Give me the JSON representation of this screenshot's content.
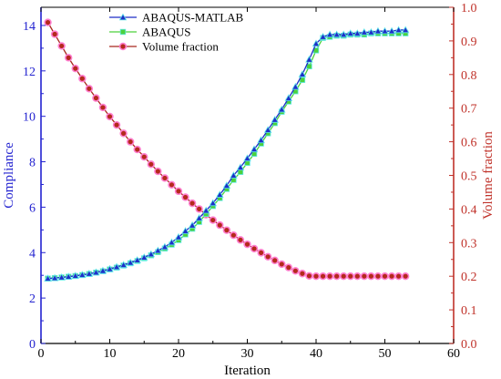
{
  "colors": {
    "left_axis": "#2323d0",
    "right_axis": "#c0322a",
    "bottom_axis": "#000000",
    "series": [
      "#1f2fc8",
      "#4cd13c",
      "#a8281e"
    ],
    "marker_fill_volume": "#b42a1c",
    "marker_glow_volume": "#ff7fd0",
    "marker_glow_compliance": "#5fe8e8"
  },
  "legend": {
    "position": "top-left"
  },
  "chart_data": {
    "type": "line",
    "xlabel": "Iteration",
    "ylabel": "Compliance",
    "y2label": "Volume fraction",
    "xlim": [
      0,
      60
    ],
    "ylim": [
      0,
      14.8
    ],
    "y2lim": [
      0,
      1.0
    ],
    "xticks": [
      "0",
      "10",
      "20",
      "30",
      "40",
      "50",
      "60"
    ],
    "yticks": [
      "0",
      "2",
      "4",
      "6",
      "8",
      "10",
      "12",
      "14"
    ],
    "y2ticks": [
      "0.0",
      "0.1",
      "0.2",
      "0.3",
      "0.4",
      "0.5",
      "0.6",
      "0.7",
      "0.8",
      "0.9",
      "1.0"
    ],
    "grid": false,
    "x": [
      1,
      2,
      3,
      4,
      5,
      6,
      7,
      8,
      9,
      10,
      11,
      12,
      13,
      14,
      15,
      16,
      17,
      18,
      19,
      20,
      21,
      22,
      23,
      24,
      25,
      26,
      27,
      28,
      29,
      30,
      31,
      32,
      33,
      34,
      35,
      36,
      37,
      38,
      39,
      40,
      41,
      42,
      43,
      44,
      45,
      46,
      47,
      48,
      49,
      50,
      51,
      52,
      53
    ],
    "series": [
      {
        "name": "ABAQUS-MATLAB",
        "axis": "left",
        "marker": "triangle",
        "values": [
          2.86,
          2.88,
          2.91,
          2.94,
          2.98,
          3.02,
          3.07,
          3.13,
          3.2,
          3.28,
          3.37,
          3.46,
          3.56,
          3.67,
          3.79,
          3.93,
          4.09,
          4.25,
          4.45,
          4.68,
          4.95,
          5.2,
          5.52,
          5.85,
          6.18,
          6.55,
          6.95,
          7.4,
          7.75,
          8.15,
          8.55,
          8.95,
          9.4,
          9.85,
          10.3,
          10.8,
          11.3,
          11.85,
          12.5,
          13.2,
          13.5,
          13.6,
          13.6,
          13.6,
          13.65,
          13.65,
          13.7,
          13.7,
          13.75,
          13.75,
          13.75,
          13.8,
          13.8
        ]
      },
      {
        "name": "ABAQUS",
        "axis": "left",
        "marker": "square",
        "values": [
          2.86,
          2.88,
          2.91,
          2.94,
          2.97,
          3.01,
          3.06,
          3.12,
          3.18,
          3.26,
          3.34,
          3.43,
          3.53,
          3.63,
          3.75,
          3.88,
          4.02,
          4.18,
          4.35,
          4.55,
          4.8,
          5.05,
          5.35,
          5.7,
          6.05,
          6.4,
          6.8,
          7.2,
          7.55,
          7.95,
          8.35,
          8.8,
          9.25,
          9.7,
          10.2,
          10.65,
          11.1,
          11.6,
          12.2,
          12.9,
          13.45,
          13.5,
          13.55,
          13.55,
          13.6,
          13.6,
          13.6,
          13.65,
          13.65,
          13.65,
          13.65,
          13.65,
          13.65
        ]
      },
      {
        "name": "Volume fraction",
        "axis": "right",
        "marker": "circle",
        "values": [
          0.955,
          0.92,
          0.885,
          0.85,
          0.818,
          0.788,
          0.758,
          0.73,
          0.702,
          0.675,
          0.65,
          0.625,
          0.6,
          0.577,
          0.555,
          0.533,
          0.512,
          0.492,
          0.472,
          0.453,
          0.435,
          0.417,
          0.4,
          0.383,
          0.367,
          0.352,
          0.337,
          0.322,
          0.308,
          0.295,
          0.282,
          0.27,
          0.258,
          0.247,
          0.236,
          0.226,
          0.216,
          0.208,
          0.201,
          0.2,
          0.2,
          0.2,
          0.2,
          0.2,
          0.2,
          0.2,
          0.2,
          0.2,
          0.2,
          0.2,
          0.2,
          0.2,
          0.2
        ]
      }
    ]
  }
}
